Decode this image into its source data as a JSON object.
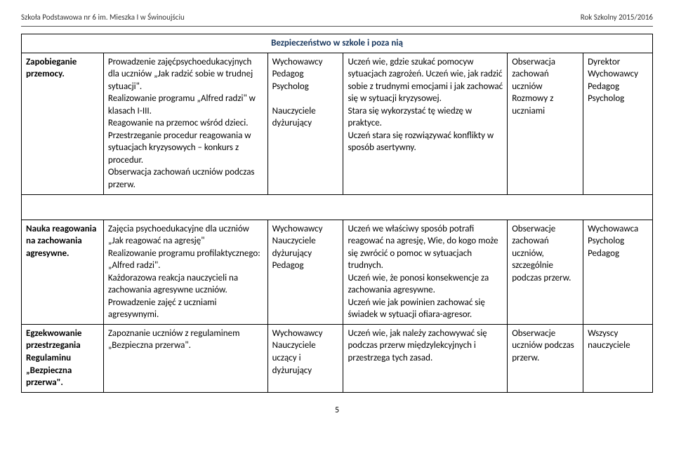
{
  "header": {
    "left": "Szkoła Podstawowa nr 6 im. Mieszka I w Świnoujściu",
    "right": "Rok Szkolny 2015/2016"
  },
  "title": "Bezpieczeństwo w szkole i poza nią",
  "rows": [
    {
      "c1": "Zapobieganie przemocy.",
      "c2": "Prowadzenie zajęćpsychoedukacyjnych dla uczniów „Jak radzić sobie w trudnej sytuacji\".\nRealizowanie programu „Alfred radzi\" w klasach I-III.\nReagowanie na przemoc wśród dzieci.\nPrzestrzeganie procedur reagowania w sytuacjach kryzysowych – konkurs z procedur.\nObserwacja zachowań uczniów podczas przerw.",
      "c3": "Wychowawcy\nPedagog\nPsycholog\n\nNauczyciele dyżurujący",
      "c4": "Uczeń wie, gdzie szukać pomocyw sytuacjach zagrożeń. Uczeń wie, jak radzić sobie z trudnymi emocjami i jak zachować się w sytuacji kryzysowej.\nStara się wykorzystać tę wiedzę w praktyce.\nUczeń stara się rozwiązywać konflikty w sposób asertywny.",
      "c5": "Obserwacja zachowań uczniów\nRozmowy z uczniami",
      "c6": "Dyrektor\nWychowawcy\nPedagog\nPsycholog"
    },
    {
      "c1": "Nauka reagowania na zachowania agresywne.",
      "c2": "Zajęcia psychoedukacyjne dla uczniów „Jak reagować na agresję\"\nRealizowanie programu profilaktycznego: „Alfred radzi\".\nKażdorazowa reakcja nauczycieli na zachowania agresywne uczniów.\nProwadzenie zajęć z uczniami agresywnymi.",
      "c3": "Wychowawcy\nNauczyciele dyżurujący\nPedagog",
      "c4": "Uczeń we właściwy sposób potrafi reagować na agresję, Wie, do kogo może się zwrócić o pomoc w sytuacjach trudnych.\nUczeń wie, że ponosi konsekwencje za zachowania agresywne.\nUczeń wie jak powinien zachować się świadek w sytuacji ofiara-agresor.",
      "c5": "Obserwacje zachowań uczniów, szczególnie podczas przerw.",
      "c6": "Wychowawca\nPsycholog\nPedagog"
    },
    {
      "c1": "Egzekwowanie przestrzegania Regulaminu „Bezpieczna przerwa\".",
      "c2": "Zapoznanie uczniów z regulaminem „Bezpieczna przerwa\".",
      "c3": "Wychowawcy\nNauczyciele uczący i dyżurujący",
      "c4": "Uczeń wie, jak należy zachowywać się podczas przerw międzylekcyjnych i przestrzega tych zasad.",
      "c5": "Obserwacje uczniów podczas przerw.",
      "c6": "Wszyscy nauczyciele"
    }
  ],
  "page_number": "5"
}
